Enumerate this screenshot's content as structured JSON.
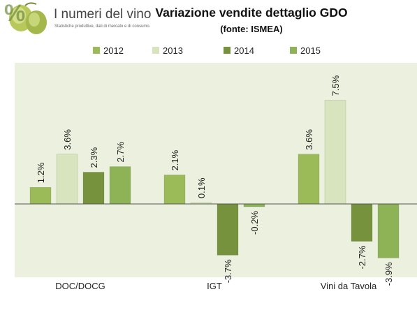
{
  "logo": {
    "title": "I numeri del vino",
    "subtitle": "Statistiche produttive, dati di mercato e di consumo."
  },
  "chart_data": {
    "type": "bar",
    "title": "Variazione vendite dettaglio GDO",
    "subtitle": "(fonte: ISMEA)",
    "categories": [
      "DOC/DOCG",
      "IGT",
      "Vini da Tavola"
    ],
    "series": [
      {
        "name": "2012",
        "color": "#9BBB59",
        "values": [
          1.2,
          2.1,
          3.6
        ],
        "labels": [
          "1.2%",
          "2.1%",
          "3.6%"
        ]
      },
      {
        "name": "2013",
        "color": "#D7E4BD",
        "values": [
          3.6,
          0.1,
          7.5
        ],
        "labels": [
          "3.6%",
          "0.1%",
          "7.5%"
        ]
      },
      {
        "name": "2014",
        "color": "#76923C",
        "values": [
          2.3,
          -3.7,
          -2.7
        ],
        "labels": [
          "2.3%",
          "-3.7%",
          "-2.7%"
        ]
      },
      {
        "name": "2015",
        "color": "#8DB356",
        "values": [
          2.7,
          -0.2,
          -3.9
        ],
        "labels": [
          "2.7%",
          "-0.2%",
          "-3.9%"
        ]
      }
    ],
    "ylim": [
      -5.3,
      10.2
    ],
    "grid": false,
    "legend": "top",
    "background": "#EBF1DE"
  }
}
